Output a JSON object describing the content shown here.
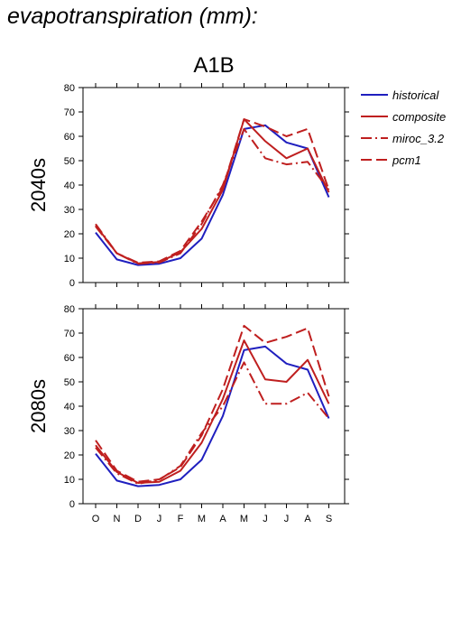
{
  "page": {
    "title": "evapotranspiration (mm):"
  },
  "chart_data": {
    "type": "line",
    "title": "A1B",
    "categories": [
      "O",
      "N",
      "D",
      "J",
      "F",
      "M",
      "A",
      "M",
      "J",
      "J",
      "A",
      "S"
    ],
    "ylim": [
      0,
      80
    ],
    "yticks": [
      0,
      10,
      20,
      30,
      40,
      50,
      60,
      70,
      80
    ],
    "legend_position": "top-right",
    "legend": [
      {
        "name": "historical",
        "color": "#1f1fbf",
        "dash": "solid"
      },
      {
        "name": "composite",
        "color": "#bf1f1f",
        "dash": "solid"
      },
      {
        "name": "miroc_3.2",
        "color": "#bf1f1f",
        "dash": "dashdot"
      },
      {
        "name": "pcm1",
        "color": "#bf1f1f",
        "dash": "dash"
      }
    ],
    "panels": [
      {
        "label": "2040s",
        "series": [
          {
            "name": "historical",
            "values": [
              20.5,
              9.5,
              7.2,
              7.7,
              10,
              18,
              36,
              63,
              64.5,
              57.5,
              55,
              35
            ]
          },
          {
            "name": "composite",
            "values": [
              23.5,
              12,
              7.9,
              8.4,
              12.5,
              22,
              38,
              67,
              58,
              51,
              55,
              37
            ]
          },
          {
            "name": "miroc_3.2",
            "values": [
              24,
              12,
              7.7,
              8.2,
              12,
              24,
              40,
              63,
              51,
              48.5,
              49.5,
              38
            ]
          },
          {
            "name": "pcm1",
            "values": [
              23,
              12,
              8.1,
              8.7,
              13,
              25,
              39,
              67,
              64,
              60,
              63,
              38
            ]
          }
        ]
      },
      {
        "label": "2080s",
        "series": [
          {
            "name": "historical",
            "values": [
              20.5,
              9.5,
              7.2,
              7.7,
              10,
              18,
              36,
              63,
              64.5,
              57.5,
              55,
              35
            ]
          },
          {
            "name": "composite",
            "values": [
              24,
              13,
              8.5,
              9,
              13.5,
              25,
              43,
              67,
              51,
              50,
              59,
              41
            ]
          },
          {
            "name": "miroc_3.2",
            "values": [
              23,
              12.5,
              8.2,
              9.8,
              15.5,
              29,
              40,
              58,
              41,
              41,
              45.5,
              35
            ]
          },
          {
            "name": "pcm1",
            "values": [
              26,
              13.5,
              9,
              10,
              15,
              28,
              47,
              73,
              66,
              68.5,
              72,
              44
            ]
          }
        ]
      }
    ]
  }
}
